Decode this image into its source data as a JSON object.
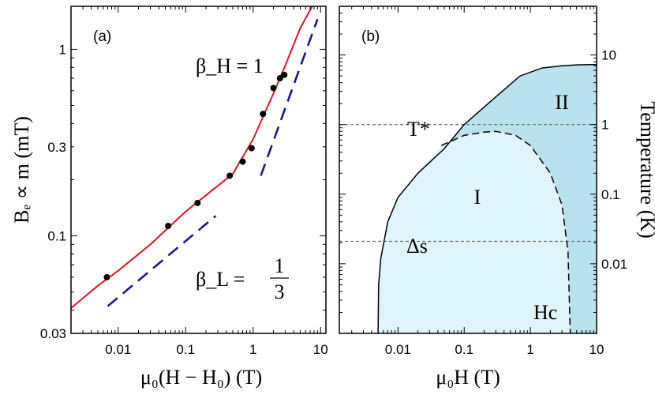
{
  "chart_data": [
    {
      "type": "scatter",
      "panel_label": "(a)",
      "xlabel": "μ₀(H − H₀) (T)",
      "ylabel": "Bₑ ∝ m (mT)",
      "x_scale": "log",
      "y_scale": "log",
      "xlim": [
        0.002,
        12
      ],
      "ylim": [
        0.03,
        1.7
      ],
      "x_ticks": [
        {
          "value": 0.01,
          "label": "0.01"
        },
        {
          "value": 0.1,
          "label": "0.1"
        },
        {
          "value": 1,
          "label": "1"
        },
        {
          "value": 10,
          "label": "10"
        }
      ],
      "y_ticks": [
        {
          "value": 0.03,
          "label": "0.03"
        },
        {
          "value": 0.1,
          "label": "0.1"
        },
        {
          "value": 0.3,
          "label": "0.3"
        },
        {
          "value": 1,
          "label": "1"
        }
      ],
      "points": {
        "color": "#000000",
        "x": [
          0.0068,
          0.055,
          0.15,
          0.45,
          0.7,
          0.95,
          1.4,
          2.0,
          2.5,
          2.9
        ],
        "y": [
          0.06,
          0.113,
          0.15,
          0.21,
          0.25,
          0.295,
          0.45,
          0.62,
          0.7,
          0.73
        ]
      },
      "fit_curve": {
        "color": "#e8141c",
        "x": [
          0.002,
          0.005,
          0.01,
          0.03,
          0.1,
          0.2,
          0.5,
          1,
          2,
          3,
          5,
          7.5
        ],
        "y": [
          0.041,
          0.054,
          0.065,
          0.09,
          0.135,
          0.165,
          0.215,
          0.33,
          0.58,
          0.82,
          1.3,
          1.7
        ]
      },
      "guide_lines": [
        {
          "label_main": "β_L = ",
          "label_num": "1",
          "label_den": "3",
          "color": "#1a1a8c",
          "x": [
            0.007,
            0.28
          ],
          "y": [
            0.042,
            0.128
          ]
        },
        {
          "label_main": "β_H = 1",
          "color": "#1a1a8c",
          "x": [
            1.3,
            9.0
          ],
          "y": [
            0.21,
            1.45
          ]
        }
      ]
    },
    {
      "type": "area",
      "panel_label": "(b)",
      "xlabel": "μ₀H (T)",
      "ylabel": "Temperature (K)",
      "x_scale": "log",
      "y_scale": "log",
      "xlim": [
        0.0013,
        10
      ],
      "ylim": [
        0.001,
        50
      ],
      "x_ticks": [
        {
          "value": 0.01,
          "label": "0.01"
        },
        {
          "value": 0.1,
          "label": "0.1"
        },
        {
          "value": 1,
          "label": "1"
        },
        {
          "value": 10,
          "label": "10"
        }
      ],
      "y_ticks": [
        {
          "value": 0.01,
          "label": "0.01"
        },
        {
          "value": 0.1,
          "label": "0.1"
        },
        {
          "value": 1,
          "label": "1"
        },
        {
          "value": 10,
          "label": "10"
        }
      ],
      "outer_boundary": {
        "x": [
          0.005,
          0.0051,
          0.0055,
          0.007,
          0.01,
          0.02,
          0.05,
          0.1,
          0.3,
          0.7,
          1.5,
          3,
          5,
          10
        ],
        "y": [
          0.001,
          0.005,
          0.012,
          0.04,
          0.09,
          0.2,
          0.45,
          1.0,
          2.5,
          5.0,
          6.5,
          7.0,
          7.2,
          7.3
        ]
      },
      "Hc_boundary": {
        "x": [
          0.045,
          0.1,
          0.2,
          0.3,
          0.6,
          1.0,
          2.0,
          3.0,
          3.7,
          4.0
        ],
        "y": [
          0.5,
          0.7,
          0.78,
          0.8,
          0.7,
          0.5,
          0.2,
          0.07,
          0.015,
          0.001
        ]
      },
      "reference_lines": [
        {
          "label": "T*",
          "value": 1.0
        },
        {
          "label": "Δs",
          "value": 0.021
        }
      ],
      "regions": [
        {
          "label": "I",
          "color": "#e0f4fb"
        },
        {
          "label": "II",
          "color": "#b8e2ee"
        }
      ],
      "curve_label": "Hc"
    }
  ]
}
